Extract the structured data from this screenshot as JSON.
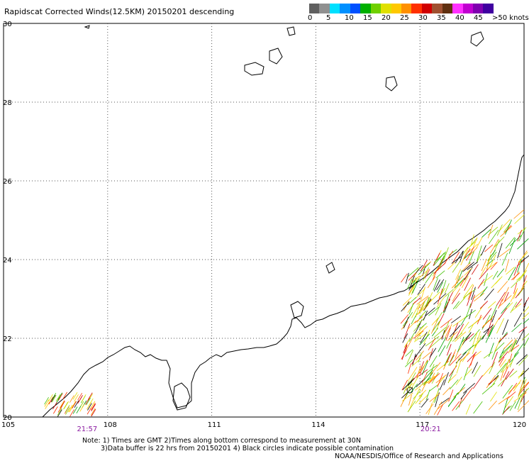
{
  "title": "Rapidscat Corrected Winds(12.5KM) 20150201 descending",
  "legend": {
    "unit_suffix": "knots",
    "labels": [
      "0",
      "5",
      "10",
      "15",
      "20",
      "25",
      "30",
      "35",
      "40",
      "45",
      ">50 knots"
    ],
    "colors": [
      "#606060",
      "#909090",
      "#00e0ff",
      "#0090ff",
      "#0050ff",
      "#00b000",
      "#70d000",
      "#e0e000",
      "#ffc800",
      "#ff9000",
      "#ff3000",
      "#d00000",
      "#a05030",
      "#603010",
      "#ff30ff",
      "#c000d0",
      "#8000b0",
      "#4000a0"
    ]
  },
  "axes": {
    "lon_min": 105,
    "lon_max": 120,
    "lat_min": 20,
    "lat_max": 30,
    "lon_ticks": [
      "105",
      "108",
      "111",
      "114",
      "117",
      "120"
    ],
    "lat_ticks": [
      "30",
      "28",
      "26",
      "24",
      "22",
      "20"
    ]
  },
  "pass_times": [
    {
      "label": "21:57",
      "lon": 107.4
    },
    {
      "label": "20:21",
      "lon": 117.3
    }
  ],
  "notes": {
    "line1": "Note: 1) Times are GMT 2)Times along bottom correspond to measurement at 30N",
    "line2": "3)Data buffer is 22 hrs from 20150201 4) Black circles indicate possible contamination"
  },
  "credit": "NOAA/NESDIS/Office of Research and Applications",
  "colors": {
    "grid": "#555555",
    "coast": "#000000",
    "time_label": "#8a1aa0"
  }
}
